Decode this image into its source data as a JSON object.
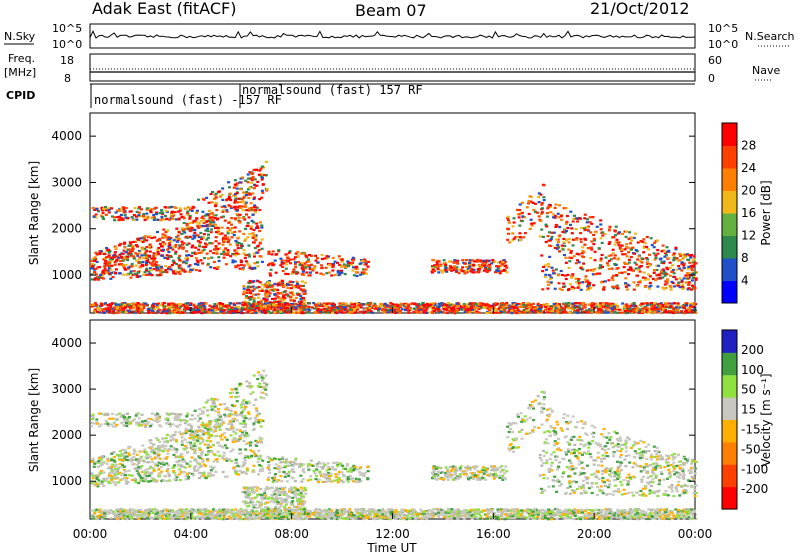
{
  "header": {
    "title": "Adak East (fitACF)",
    "beam": "Beam 07",
    "date": "21/Oct/2012"
  },
  "status_panels": {
    "nsky_label": "N.Sky",
    "nsky_ticks": [
      "10^5",
      "10^0"
    ],
    "nsearch_label": "N.Search",
    "nsearch_ticks": [
      "10^5",
      "10^0"
    ],
    "freq_label_line1": "Freq.",
    "freq_label_line2": "[MHz]",
    "freq_ticks": [
      "18",
      "8"
    ],
    "nave_label": "Nave",
    "nave_ticks": [
      "60",
      "0"
    ],
    "cpid_label": "CPID",
    "cpid_text_1": "normalsound (fast) -157 RF",
    "cpid_text_2": "normalsound (fast) 157 RF"
  },
  "chart_data": [
    {
      "type": "heatmap",
      "name_printed": "",
      "ylabel": "Slant Range [km]",
      "y_ticks": [
        "4000",
        "3000",
        "2000",
        "1000"
      ],
      "ylim": [
        180,
        4500
      ],
      "xlim_hours": [
        0,
        24
      ],
      "colorbar": {
        "label": "Power [dB]",
        "ticks": [
          "28",
          "24",
          "20",
          "16",
          "12",
          "8",
          "4"
        ],
        "range": [
          0,
          30
        ],
        "colors": [
          "#0000ff",
          "#2050c8",
          "#2e8a4c",
          "#64b040",
          "#f0b818",
          "#ff8000",
          "#ff4000",
          "#ff0000"
        ]
      }
    },
    {
      "type": "heatmap",
      "ylabel": "Slant Range [km]",
      "y_ticks": [
        "4000",
        "3000",
        "2000",
        "1000"
      ],
      "ylim": [
        180,
        4500
      ],
      "xlim_hours": [
        0,
        24
      ],
      "colorbar": {
        "label": "Velocity [m s⁻¹]",
        "ticks": [
          "200",
          "100",
          "50",
          "15",
          "-15",
          "-50",
          "-100",
          "-200"
        ],
        "range": [
          -250,
          250
        ],
        "colors": [
          "#ff0000",
          "#ff4000",
          "#ff8000",
          "#ffb000",
          "#c8c8c0",
          "#90e040",
          "#40a040",
          "#2020c0"
        ]
      }
    }
  ],
  "x_axis": {
    "ticks": [
      "00:00",
      "04:00",
      "08:00",
      "12:00",
      "16:00",
      "20:00",
      "00:00"
    ],
    "label": "Time UT"
  }
}
